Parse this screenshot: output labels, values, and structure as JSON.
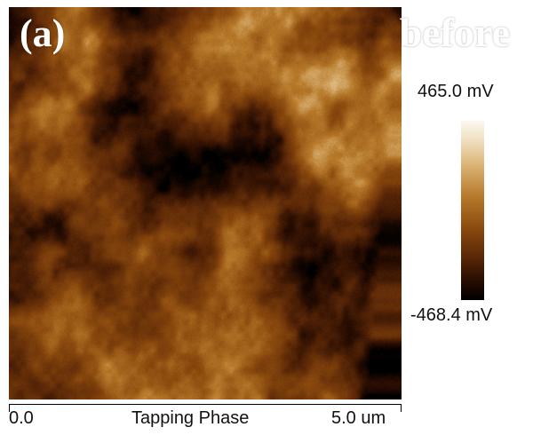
{
  "panel": {
    "label": "(a)",
    "condition": "before"
  },
  "axis": {
    "start_label": "0.0",
    "title": "Tapping Phase",
    "end_label": "5.0 um"
  },
  "colorbar": {
    "max_label": "465.0 mV",
    "min_label": "-468.4 mV",
    "colors": [
      "#fbf8ef",
      "#f0e2c5",
      "#ddb67a",
      "#b77a2b",
      "#8b4a0e",
      "#5a2707",
      "#280d02",
      "#000000"
    ]
  }
}
